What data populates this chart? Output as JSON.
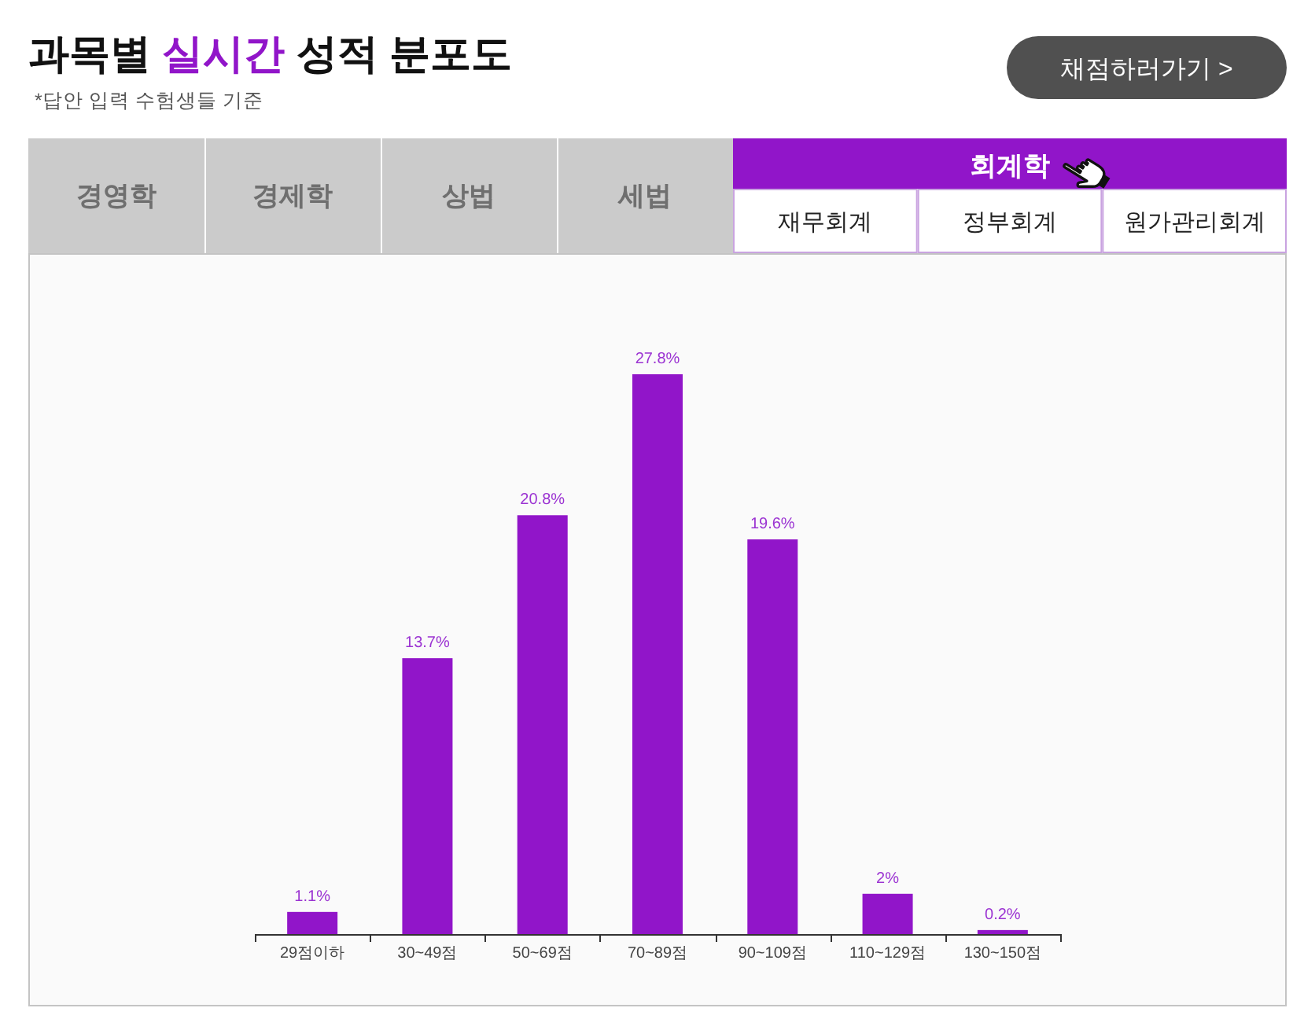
{
  "chart_data": {
    "type": "bar",
    "title": "과목별 실시간 성적 분포도",
    "subtitle": "*답안 입력 수험생들 기준",
    "annotations": [
      "채점하러가기 >",
      "경영학",
      "경제학",
      "상법",
      "세법",
      "회계학",
      "재무회계",
      "정부회계",
      "원가관리회계"
    ],
    "categories": [
      "29점이하",
      "30~49점",
      "50~69점",
      "70~89점",
      "90~109점",
      "110~129점",
      "130~150점"
    ],
    "values": [
      1.1,
      13.7,
      20.8,
      27.8,
      19.6,
      2,
      0.2
    ],
    "value_labels": [
      "1.1%",
      "13.7%",
      "20.8%",
      "27.8%",
      "19.6%",
      "2%",
      "0.2%"
    ],
    "color": "#9115c9"
  }
}
